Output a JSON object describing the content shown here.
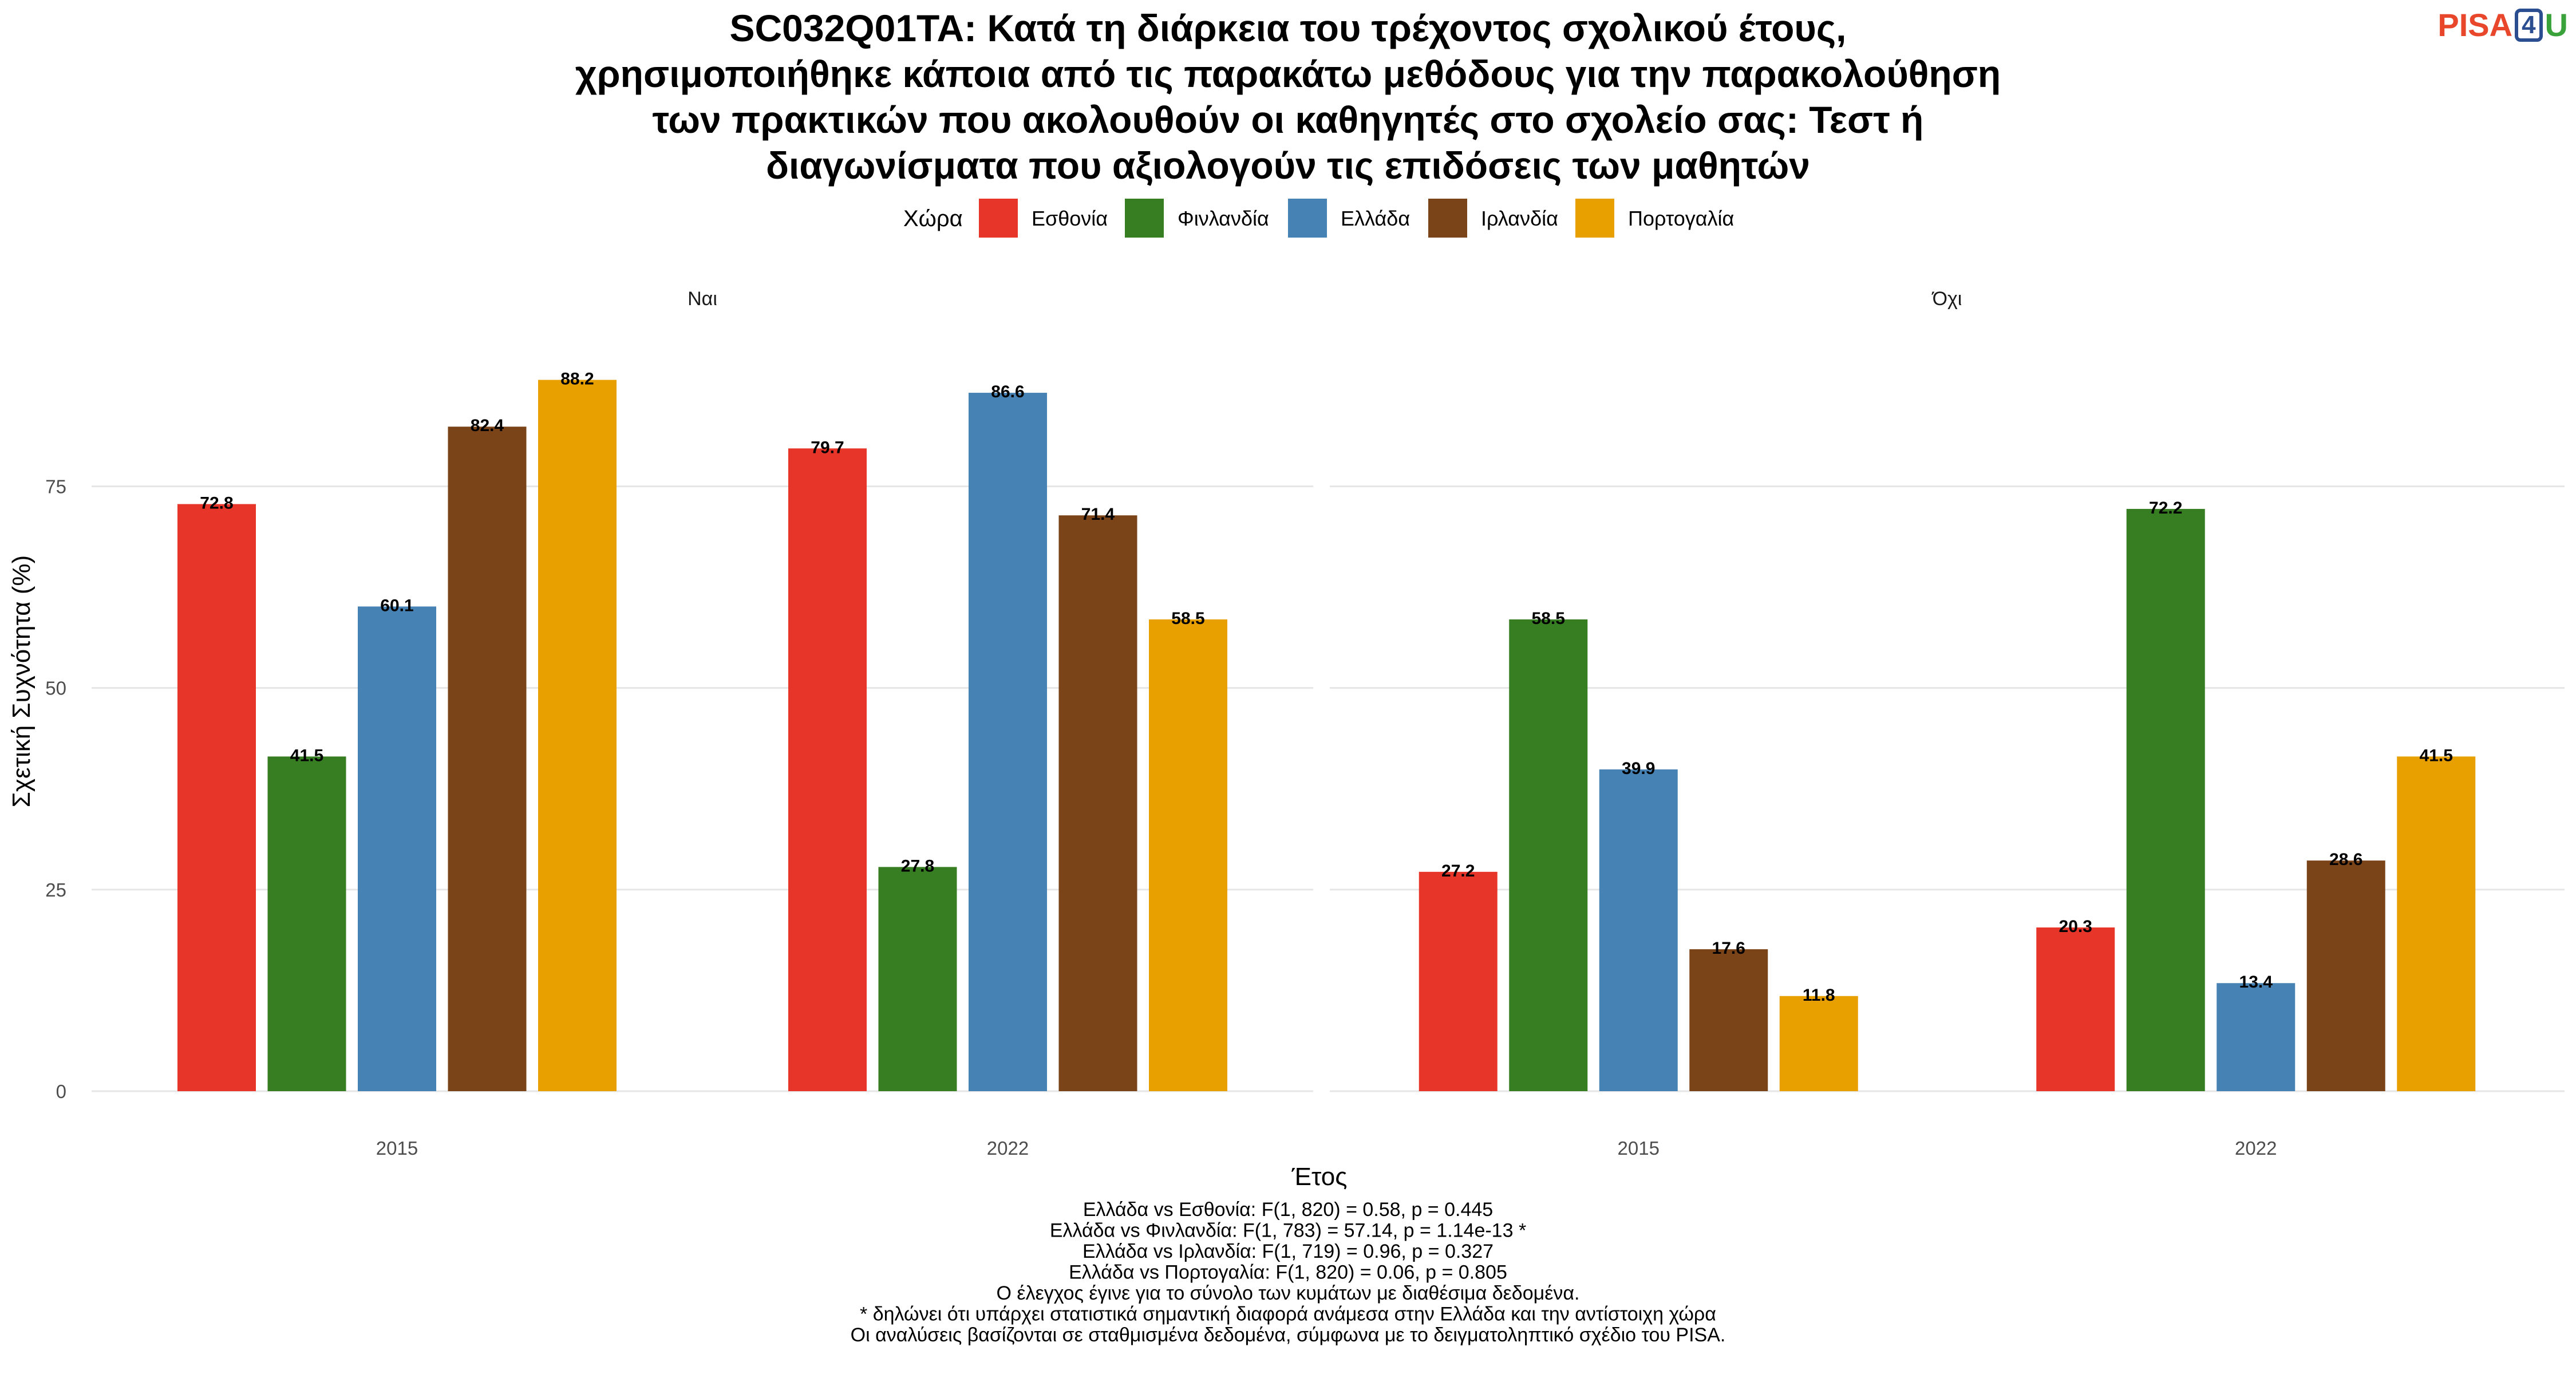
{
  "logo": {
    "pisa": "PISA",
    "four": "4",
    "u": "U"
  },
  "chart_data": {
    "type": "bar",
    "title_lines": [
      "SC032Q01TA: Κατά τη διάρκεια του τρέχοντος σχολικού έτους,",
      "χρησιμοποιήθηκε κάποια από τις παρακάτω μεθόδους για την παρακολούθηση",
      "των πρακτικών που ακολουθούν οι καθηγητές στο σχολείο σας: Τεστ ή",
      "διαγωνίσματα που αξιολογούν τις επιδόσεις των μαθητών"
    ],
    "legend": {
      "title": "Χώρα",
      "position": "top",
      "entries": [
        {
          "name": "Εσθονία",
          "color": "#E8352A"
        },
        {
          "name": "Φινλανδία",
          "color": "#377E22"
        },
        {
          "name": "Ελλάδα",
          "color": "#4682B4"
        },
        {
          "name": "Ιρλανδία",
          "color": "#7B4418"
        },
        {
          "name": "Πορτογαλία",
          "color": "#E8A000"
        }
      ]
    },
    "xlabel": "Έτος",
    "ylabel": "Σχετική Συχνότητα (%)",
    "ylim": [
      0,
      92
    ],
    "yticks": [
      0,
      25,
      50,
      75
    ],
    "grid": true,
    "categories": [
      "2015",
      "2022"
    ],
    "facets": [
      {
        "label": "Ναι",
        "series": [
          {
            "name": "Εσθονία",
            "values": [
              72.8,
              79.7
            ]
          },
          {
            "name": "Φινλανδία",
            "values": [
              41.5,
              27.8
            ]
          },
          {
            "name": "Ελλάδα",
            "values": [
              60.1,
              86.6
            ]
          },
          {
            "name": "Ιρλανδία",
            "values": [
              82.4,
              71.4
            ]
          },
          {
            "name": "Πορτογαλία",
            "values": [
              88.2,
              58.5
            ]
          }
        ]
      },
      {
        "label": "Όχι",
        "series": [
          {
            "name": "Εσθονία",
            "values": [
              27.2,
              20.3
            ]
          },
          {
            "name": "Φινλανδία",
            "values": [
              58.5,
              72.2
            ]
          },
          {
            "name": "Ελλάδα",
            "values": [
              39.9,
              13.4
            ]
          },
          {
            "name": "Ιρλανδία",
            "values": [
              17.6,
              28.6
            ]
          },
          {
            "name": "Πορτογαλία",
            "values": [
              11.8,
              41.5
            ]
          }
        ]
      }
    ],
    "notes": [
      "Ελλάδα vs Εσθονία: F(1, 820) = 0.58, p = 0.445",
      "Ελλάδα vs Φινλανδία: F(1, 783) = 57.14, p = 1.14e-13 *",
      "Ελλάδα vs Ιρλανδία: F(1, 719) = 0.96, p = 0.327",
      "Ελλάδα vs Πορτογαλία: F(1, 820) = 0.06, p = 0.805",
      "Ο έλεγχος έγινε για το σύνολο των κυμάτων με διαθέσιμα δεδομένα.",
      "* δηλώνει ότι υπάρχει στατιστικά σημαντική διαφορά ανάμεσα στην Ελλάδα και την αντίστοιχη χώρα",
      "Οι αναλύσεις βασίζονται σε σταθμισμένα δεδομένα, σύμφωνα με το δειγματοληπτικό σχέδιο του PISA."
    ]
  }
}
